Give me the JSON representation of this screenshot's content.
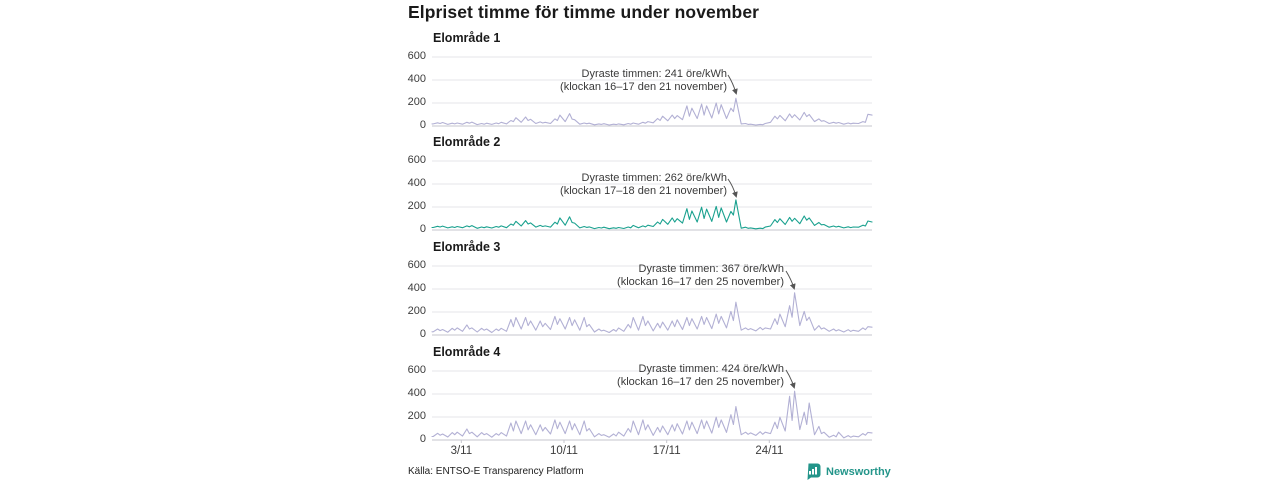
{
  "title": "Elpriset timme för timme under november",
  "source": "Källa: ENTSO-E Transparency Platform",
  "branding": {
    "name": "Newsworthy",
    "color": "#23958a",
    "icon": "bar-chart-bubble-icon"
  },
  "colors": {
    "background": "#ffffff",
    "title_text": "#1a1a1a",
    "tick_text": "#3c3c3c",
    "annotation_text": "#3a3a3a",
    "gridline": "#e5e5e9",
    "zero_axis": "#c4c4cc",
    "arrow": "#555555",
    "series_default": "#b2b0d4",
    "series_highlight": "#1aa18f"
  },
  "chart_data": {
    "type": "line",
    "title": "Elpriset timme för timme under november",
    "x_unit": "dag i november (timvärden)",
    "x_range": [
      1,
      31
    ],
    "ylim": [
      0,
      600
    ],
    "y_ticks": [
      0,
      200,
      400,
      600
    ],
    "x_ticks": [
      {
        "day": 3,
        "label": "3/11"
      },
      {
        "day": 10,
        "label": "10/11"
      },
      {
        "day": 17,
        "label": "17/11"
      },
      {
        "day": 24,
        "label": "24/11"
      }
    ],
    "grid": true,
    "legend": "none",
    "hour_offsets": [
      0.08,
      0.38,
      0.55,
      0.72
    ],
    "charts": [
      {
        "label": "Elområde 1",
        "color": "#b2b0d4",
        "annotation": {
          "line1": "Dyraste timmen: 241 öre/kWh",
          "line2": "(klockan 16–17 den 21 november)",
          "peak_value": 241,
          "peak_day": 21,
          "peak_hours": "16–17"
        },
        "daily_values": [
          [
            18,
            28,
            22,
            30
          ],
          [
            14,
            24,
            18,
            26
          ],
          [
            16,
            32,
            24,
            34
          ],
          [
            12,
            22,
            16,
            24
          ],
          [
            14,
            26,
            20,
            32
          ],
          [
            18,
            48,
            38,
            72
          ],
          [
            32,
            78,
            48,
            58
          ],
          [
            22,
            36,
            26,
            32
          ],
          [
            22,
            62,
            48,
            95
          ],
          [
            38,
            108,
            60,
            55
          ],
          [
            16,
            26,
            20,
            24
          ],
          [
            10,
            18,
            14,
            20
          ],
          [
            9,
            16,
            12,
            18
          ],
          [
            10,
            22,
            16,
            26
          ],
          [
            16,
            32,
            24,
            38
          ],
          [
            28,
            65,
            48,
            85
          ],
          [
            45,
            95,
            65,
            90
          ],
          [
            55,
            175,
            85,
            155
          ],
          [
            65,
            190,
            95,
            175
          ],
          [
            70,
            200,
            105,
            185
          ],
          [
            65,
            155,
            125,
            241
          ],
          [
            18,
            22,
            14,
            16
          ],
          [
            9,
            14,
            11,
            22
          ],
          [
            32,
            85,
            62,
            92
          ],
          [
            45,
            105,
            72,
            98
          ],
          [
            52,
            118,
            82,
            100
          ],
          [
            38,
            62,
            42,
            46
          ],
          [
            22,
            32,
            24,
            30
          ],
          [
            16,
            26,
            19,
            24
          ],
          [
            22,
            38,
            32,
            102
          ]
        ],
        "end_value": 95
      },
      {
        "label": "Elområde 2",
        "color": "#1aa18f",
        "annotation": {
          "line1": "Dyraste timmen: 262 öre/kWh",
          "line2": "(klockan 17–18 den 21 november)",
          "peak_value": 262,
          "peak_day": 21,
          "peak_hours": "17–18"
        },
        "daily_values": [
          [
            22,
            32,
            26,
            34
          ],
          [
            18,
            28,
            22,
            30
          ],
          [
            20,
            36,
            28,
            38
          ],
          [
            15,
            26,
            20,
            28
          ],
          [
            17,
            30,
            24,
            36
          ],
          [
            20,
            52,
            42,
            76
          ],
          [
            35,
            82,
            52,
            62
          ],
          [
            25,
            40,
            30,
            36
          ],
          [
            25,
            68,
            52,
            105
          ],
          [
            42,
            115,
            65,
            60
          ],
          [
            18,
            30,
            23,
            27
          ],
          [
            12,
            22,
            17,
            24
          ],
          [
            11,
            19,
            15,
            22
          ],
          [
            13,
            26,
            19,
            40
          ],
          [
            19,
            36,
            27,
            42
          ],
          [
            30,
            70,
            52,
            92
          ],
          [
            50,
            105,
            70,
            98
          ],
          [
            60,
            185,
            92,
            165
          ],
          [
            70,
            198,
            100,
            182
          ],
          [
            75,
            205,
            110,
            192
          ],
          [
            70,
            162,
            130,
            262
          ],
          [
            16,
            24,
            15,
            18
          ],
          [
            10,
            16,
            12,
            25
          ],
          [
            35,
            90,
            65,
            98
          ],
          [
            48,
            110,
            76,
            102
          ],
          [
            55,
            122,
            85,
            105
          ],
          [
            40,
            65,
            45,
            48
          ],
          [
            24,
            35,
            26,
            32
          ],
          [
            18,
            28,
            21,
            26
          ],
          [
            24,
            42,
            35,
            78
          ]
        ],
        "end_value": 70
      },
      {
        "label": "Elområde 3",
        "color": "#b2b0d4",
        "annotation": {
          "line1": "Dyraste timmen: 367 öre/kWh",
          "line2": "(klockan 16–17 den 25 november)",
          "peak_value": 367,
          "peak_day": 25,
          "peak_hours": "16–17"
        },
        "daily_values": [
          [
            28,
            52,
            38,
            48
          ],
          [
            24,
            58,
            42,
            62
          ],
          [
            32,
            88,
            52,
            62
          ],
          [
            26,
            58,
            42,
            52
          ],
          [
            22,
            52,
            38,
            58
          ],
          [
            32,
            135,
            72,
            152
          ],
          [
            52,
            152,
            82,
            122
          ],
          [
            42,
            122,
            72,
            102
          ],
          [
            48,
            162,
            92,
            142
          ],
          [
            52,
            152,
            82,
            132
          ],
          [
            42,
            152,
            72,
            92
          ],
          [
            26,
            52,
            36,
            42
          ],
          [
            22,
            48,
            32,
            62
          ],
          [
            32,
            92,
            62,
            152
          ],
          [
            42,
            162,
            82,
            122
          ],
          [
            36,
            102,
            62,
            112
          ],
          [
            42,
            122,
            72,
            132
          ],
          [
            48,
            152,
            82,
            142
          ],
          [
            52,
            162,
            92,
            152
          ],
          [
            56,
            182,
            102,
            162
          ],
          [
            62,
            205,
            125,
            285
          ],
          [
            42,
            62,
            46,
            56
          ],
          [
            36,
            66,
            46,
            62
          ],
          [
            52,
            142,
            92,
            182
          ],
          [
            72,
            255,
            155,
            367
          ],
          [
            82,
            205,
            125,
            155
          ],
          [
            42,
            82,
            52,
            62
          ],
          [
            32,
            52,
            36,
            46
          ],
          [
            26,
            46,
            31,
            41
          ],
          [
            32,
            62,
            46,
            72
          ]
        ],
        "end_value": 68
      },
      {
        "label": "Elområde 4",
        "color": "#b2b0d4",
        "annotation": {
          "line1": "Dyraste timmen: 424 öre/kWh",
          "line2": "(klockan 16–17 den 25 november)",
          "peak_value": 424,
          "peak_day": 25,
          "peak_hours": "16–17"
        },
        "daily_values": [
          [
            30,
            58,
            42,
            52
          ],
          [
            26,
            64,
            46,
            68
          ],
          [
            34,
            96,
            56,
            68
          ],
          [
            28,
            64,
            46,
            56
          ],
          [
            24,
            56,
            42,
            64
          ],
          [
            34,
            148,
            78,
            165
          ],
          [
            56,
            165,
            88,
            132
          ],
          [
            46,
            132,
            78,
            110
          ],
          [
            52,
            175,
            98,
            155
          ],
          [
            56,
            165,
            88,
            142
          ],
          [
            46,
            165,
            78,
            100
          ],
          [
            28,
            56,
            40,
            46
          ],
          [
            24,
            52,
            35,
            68
          ],
          [
            34,
            100,
            68,
            165
          ],
          [
            46,
            175,
            88,
            132
          ],
          [
            40,
            110,
            68,
            122
          ],
          [
            46,
            132,
            78,
            142
          ],
          [
            52,
            165,
            88,
            155
          ],
          [
            56,
            175,
            98,
            165
          ],
          [
            60,
            198,
            110,
            175
          ],
          [
            66,
            220,
            135,
            290
          ],
          [
            46,
            68,
            50,
            62
          ],
          [
            40,
            72,
            50,
            68
          ],
          [
            56,
            155,
            100,
            198
          ],
          [
            78,
            380,
            170,
            424
          ],
          [
            90,
            242,
            135,
            322
          ],
          [
            46,
            118,
            56,
            68
          ],
          [
            24,
            42,
            28,
            68
          ],
          [
            18,
            38,
            24,
            34
          ],
          [
            28,
            56,
            42,
            66
          ]
        ],
        "end_value": 62
      }
    ]
  }
}
